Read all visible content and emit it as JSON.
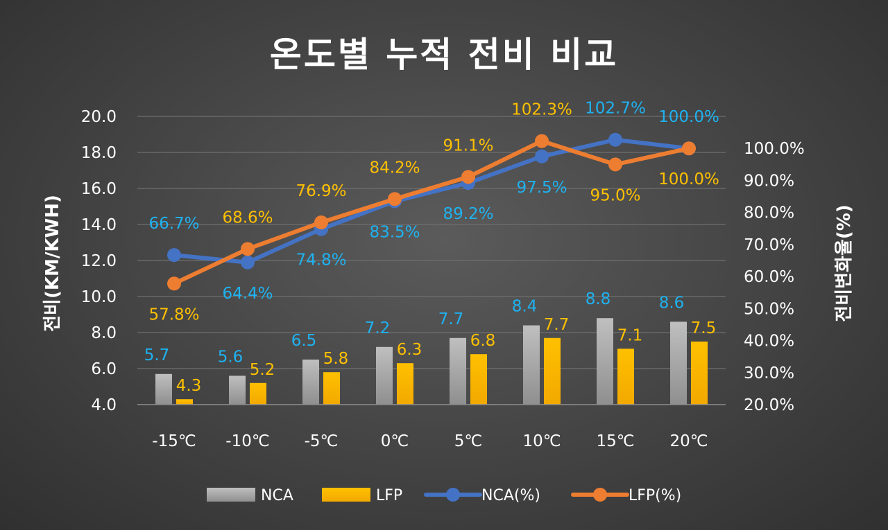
{
  "chart_data": {
    "type": "bar",
    "title": "온도별 누적 전비 비교",
    "categories": [
      "-15℃",
      "-10℃",
      "-5℃",
      "0℃",
      "5℃",
      "10℃",
      "15℃",
      "20℃"
    ],
    "ylabel": "전비(KM/KWH)",
    "y2label": "전비변화율(%)",
    "ylim": [
      4.0,
      20.0
    ],
    "y2lim": [
      20.0,
      110.0
    ],
    "yticks": [
      "4.0",
      "6.0",
      "8.0",
      "10.0",
      "12.0",
      "14.0",
      "16.0",
      "18.0",
      "20.0"
    ],
    "y2ticks": [
      "20.0%",
      "30.0%",
      "40.0%",
      "50.0%",
      "60.0%",
      "70.0%",
      "80.0%",
      "90.0%",
      "100.0%"
    ],
    "grid": true,
    "legend_position": "bottom",
    "series": [
      {
        "name": "NCA",
        "kind": "bar",
        "axis": "left",
        "color": "#a6a6a6",
        "values": [
          5.7,
          5.6,
          6.5,
          7.2,
          7.7,
          8.4,
          8.8,
          8.6
        ],
        "labels": [
          "5.7",
          "5.6",
          "6.5",
          "7.2",
          "7.7",
          "8.4",
          "8.8",
          "8.6"
        ],
        "label_color": "#1fb2f0"
      },
      {
        "name": "LFP",
        "kind": "bar",
        "axis": "left",
        "color": "#ffc000",
        "values": [
          4.3,
          5.2,
          5.8,
          6.3,
          6.8,
          7.7,
          7.1,
          7.5
        ],
        "labels": [
          "4.3",
          "5.2",
          "5.8",
          "6.3",
          "6.8",
          "7.7",
          "7.1",
          "7.5"
        ],
        "label_color": "#ffc000"
      },
      {
        "name": "NCA(%)",
        "kind": "line",
        "axis": "right",
        "color": "#4472c4",
        "values": [
          66.7,
          64.4,
          74.8,
          83.5,
          89.2,
          97.5,
          102.7,
          100.0
        ],
        "labels": [
          "66.7%",
          "64.4%",
          "74.8%",
          "83.5%",
          "89.2%",
          "97.5%",
          "102.7%",
          "100.0%"
        ],
        "label_color": "#1fb2f0"
      },
      {
        "name": "LFP(%)",
        "kind": "line",
        "axis": "right",
        "color": "#ed7d31",
        "values": [
          57.8,
          68.6,
          76.9,
          84.2,
          91.1,
          102.3,
          95.0,
          100.0
        ],
        "labels": [
          "57.8%",
          "68.6%",
          "76.9%",
          "84.2%",
          "91.1%",
          "102.3%",
          "95.0%",
          "100.0%"
        ],
        "label_color": "#ffc000"
      }
    ]
  }
}
